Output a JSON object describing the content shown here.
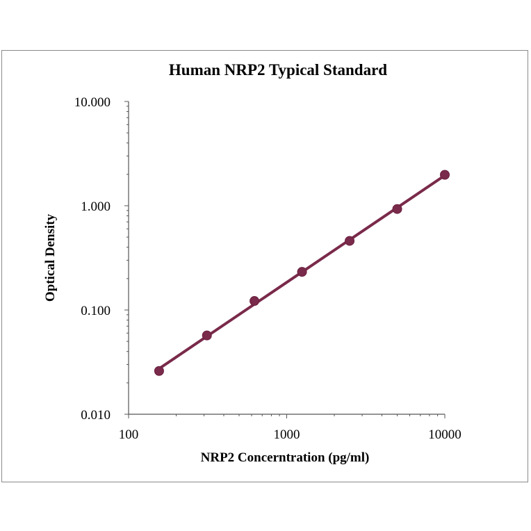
{
  "chart_data": {
    "type": "line",
    "title": "Human NRP2 Typical Standard",
    "xlabel": "NRP2 Concerntration (pg/ml)",
    "ylabel": "Optical Density",
    "x_scale": "log",
    "y_scale": "log",
    "xlim": [
      100,
      10000
    ],
    "ylim": [
      0.01,
      10
    ],
    "x_ticks": [
      "100",
      "1000",
      "10000"
    ],
    "y_ticks": [
      "10.000",
      "1.000",
      "0.100",
      "0.010"
    ],
    "grid": false,
    "legend": "none",
    "series": [
      {
        "x": [
          156,
          313,
          625,
          1250,
          2500,
          5000,
          10000
        ],
        "y": [
          0.026,
          0.057,
          0.122,
          0.232,
          0.46,
          0.93,
          1.98
        ],
        "color": "#7a2a4a",
        "marker": "circle",
        "trendline": true
      }
    ]
  }
}
